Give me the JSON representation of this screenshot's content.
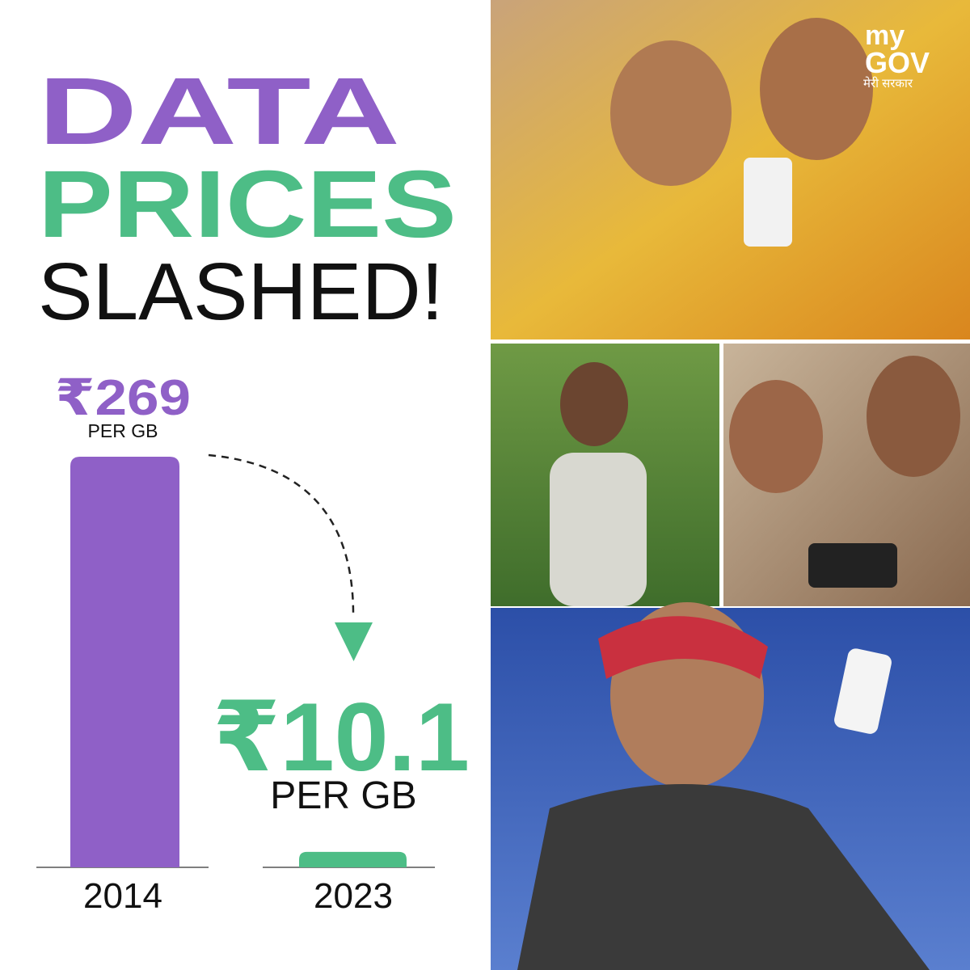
{
  "chart_data": {
    "type": "bar",
    "title_lines": [
      "DATA",
      "PRICES",
      "SLASHED!"
    ],
    "categories": [
      "2014",
      "2023"
    ],
    "values": [
      269,
      10.1
    ],
    "value_labels": [
      "₹269",
      "₹10.1"
    ],
    "unit_label": "PER GB",
    "colors": [
      "#8f60c7",
      "#4dbd86"
    ],
    "logo": {
      "line1": "my",
      "line2": "GOV",
      "tagline": "मेरी सरकार"
    }
  }
}
